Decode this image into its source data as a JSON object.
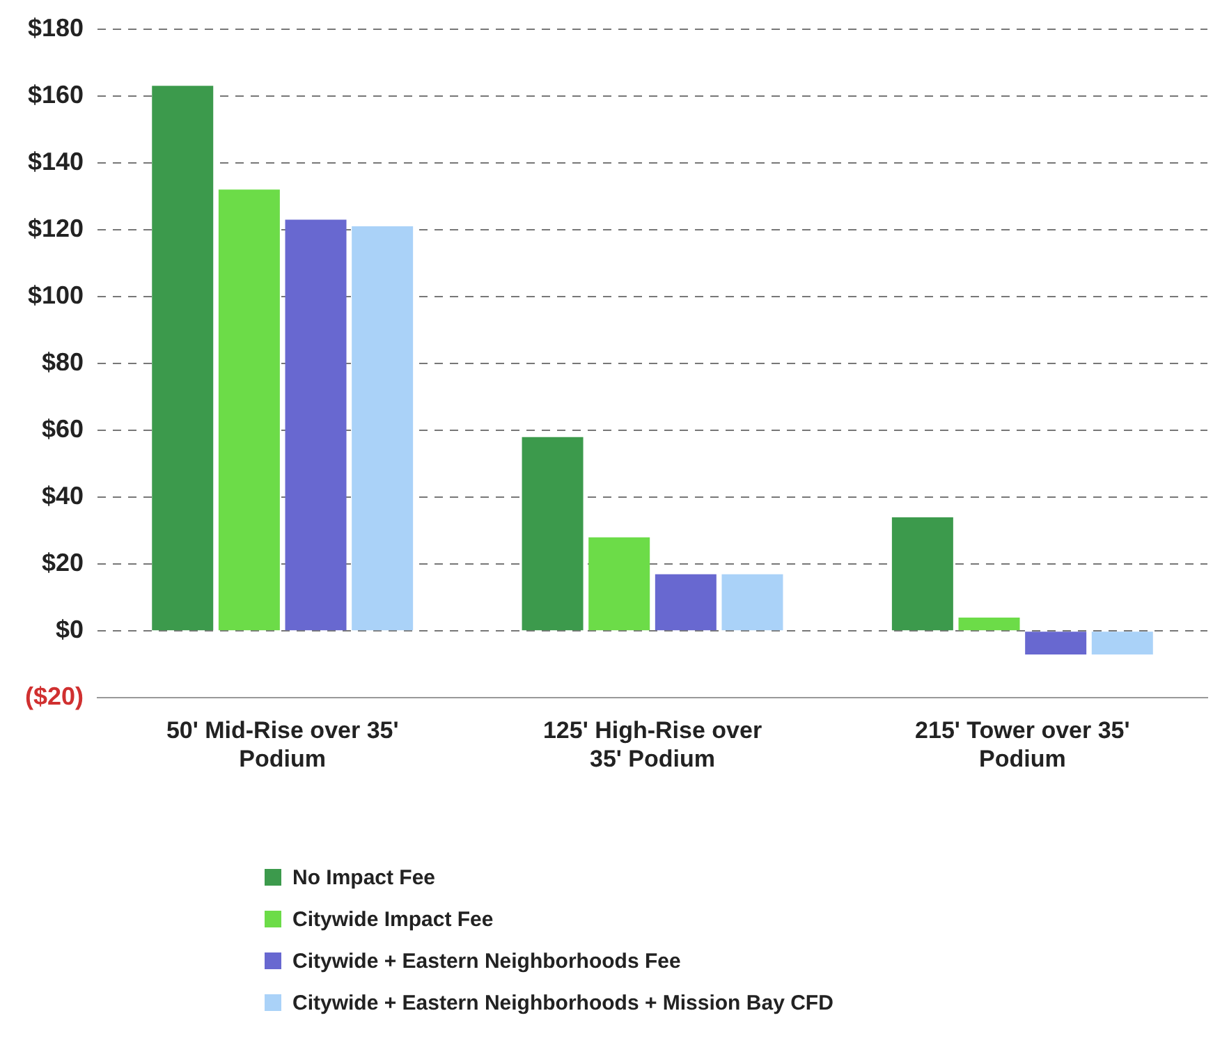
{
  "chart_data": {
    "type": "bar",
    "categories": [
      "50' Mid-Rise over 35' Podium",
      "125' High-Rise over 35' Podium",
      "215' Tower over 35' Podium"
    ],
    "series": [
      {
        "name": "No Impact Fee",
        "color": "#3c9a4c",
        "values": [
          163,
          58,
          34
        ]
      },
      {
        "name": "Citywide Impact Fee",
        "color": "#6cdc48",
        "values": [
          132,
          28,
          4
        ]
      },
      {
        "name": "Citywide + Eastern Neighborhoods Fee",
        "color": "#6868d0",
        "values": [
          123,
          17,
          -7
        ]
      },
      {
        "name": "Citywide + Eastern Neighborhoods + Mission Bay CFD",
        "color": "#aad2f8",
        "values": [
          121,
          17,
          -7
        ]
      }
    ],
    "ylim": [
      -20,
      180
    ],
    "yticks": [
      {
        "value": -20,
        "label": "($20)"
      },
      {
        "value": 0,
        "label": "$0"
      },
      {
        "value": 20,
        "label": "$20"
      },
      {
        "value": 40,
        "label": "$40"
      },
      {
        "value": 60,
        "label": "$60"
      },
      {
        "value": 80,
        "label": "$80"
      },
      {
        "value": 100,
        "label": "$100"
      },
      {
        "value": 120,
        "label": "$120"
      },
      {
        "value": 140,
        "label": "$140"
      },
      {
        "value": 160,
        "label": "$160"
      },
      {
        "value": 180,
        "label": "$180"
      }
    ],
    "grid": "y",
    "legend": "bottom"
  }
}
